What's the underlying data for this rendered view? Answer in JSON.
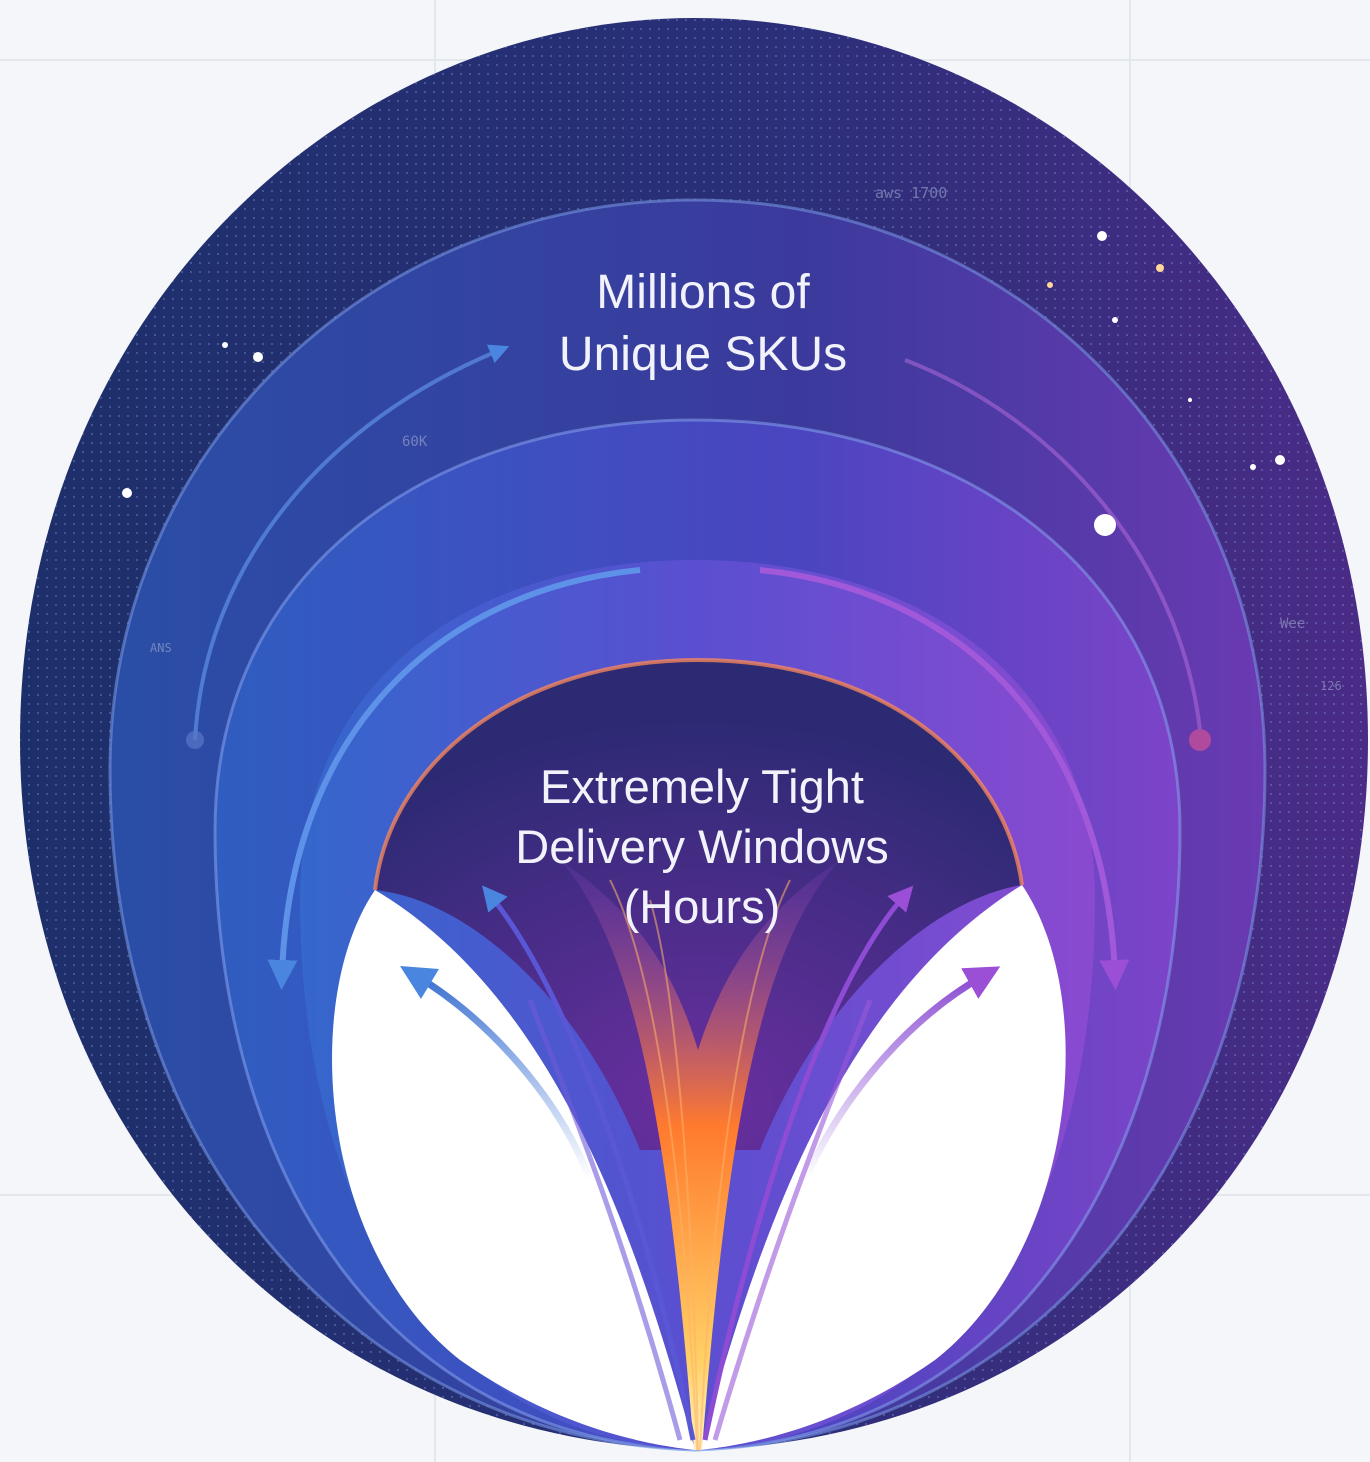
{
  "diagram": {
    "outer_label": {
      "line1": "Millions of",
      "line2": "Unique SKUs"
    },
    "inner_label": {
      "line1": "Extremely Tight",
      "line2": "Delivery Windows",
      "line3": "(Hours)"
    },
    "faint_labels": [
      "aws 1700",
      "60K",
      "ANS",
      "Wee",
      "126"
    ],
    "colors": {
      "background": "#f4f6f9",
      "outer_ring": "#243a7c",
      "blue": "#2f63c8",
      "violet": "#7a3fc3",
      "funnel_orange": "#ff7a2e",
      "funnel_yellow": "#ffd166"
    }
  }
}
